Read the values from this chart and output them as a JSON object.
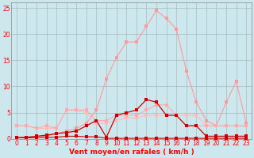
{
  "xlabel": "Vent moyen/en rafales ( km/h )",
  "bg_color": "#cce8ee",
  "grid_color": "#aabbbb",
  "xlim": [
    -0.5,
    23.5
  ],
  "ylim": [
    0,
    26
  ],
  "yticks": [
    0,
    5,
    10,
    15,
    20,
    25
  ],
  "xticks": [
    0,
    1,
    2,
    3,
    4,
    5,
    6,
    7,
    8,
    9,
    10,
    11,
    12,
    13,
    14,
    15,
    16,
    17,
    18,
    19,
    20,
    21,
    22,
    23
  ],
  "line_big_pink_x": [
    0,
    1,
    2,
    3,
    4,
    5,
    6,
    7,
    8,
    9,
    10,
    11,
    12,
    13,
    14,
    15,
    16,
    17,
    18,
    19,
    20,
    21,
    22,
    23
  ],
  "line_big_pink_y": [
    0.3,
    0.3,
    0.5,
    0.5,
    1.0,
    1.5,
    2.0,
    3.0,
    5.5,
    11.5,
    15.5,
    18.5,
    18.5,
    21.5,
    24.5,
    23.0,
    21.0,
    13.0,
    7.0,
    3.5,
    2.5,
    7.0,
    11.0,
    3.0
  ],
  "line_med_pink1_x": [
    0,
    1,
    2,
    3,
    4,
    5,
    6,
    7,
    8,
    9,
    10,
    11,
    12,
    13,
    14,
    15,
    16,
    17,
    18,
    19,
    20,
    21,
    22,
    23
  ],
  "line_med_pink1_y": [
    2.5,
    2.5,
    2.0,
    2.0,
    2.0,
    5.5,
    5.5,
    5.0,
    3.0,
    3.0,
    3.5,
    4.0,
    4.0,
    4.5,
    4.5,
    4.5,
    4.5,
    4.5,
    4.5,
    2.5,
    2.5,
    2.5,
    2.5,
    2.5
  ],
  "line_med_pink2_x": [
    0,
    1,
    2,
    3,
    4,
    5,
    6,
    7,
    8,
    9,
    10,
    11,
    12,
    13,
    14,
    15,
    16,
    17,
    18,
    19,
    20,
    21,
    22,
    23
  ],
  "line_med_pink2_y": [
    2.5,
    2.5,
    2.0,
    2.5,
    2.0,
    5.5,
    5.5,
    5.5,
    3.5,
    3.5,
    4.5,
    4.5,
    4.5,
    5.5,
    6.5,
    6.5,
    4.5,
    2.5,
    2.5,
    2.5,
    2.5,
    2.5,
    2.5,
    2.5
  ],
  "line_dark_red_x": [
    0,
    1,
    2,
    3,
    4,
    5,
    6,
    7,
    8,
    9,
    10,
    11,
    12,
    13,
    14,
    15,
    16,
    17,
    18,
    19,
    20,
    21,
    22,
    23
  ],
  "line_dark_red_y": [
    0.2,
    0.3,
    0.5,
    0.7,
    1.0,
    1.2,
    1.5,
    2.5,
    3.5,
    0.3,
    4.5,
    5.0,
    5.5,
    7.5,
    7.0,
    4.5,
    4.5,
    2.5,
    2.5,
    0.5,
    0.5,
    0.5,
    0.5,
    0.5
  ],
  "line_near_zero_x": [
    0,
    1,
    2,
    3,
    4,
    5,
    6,
    7,
    8,
    9,
    10,
    11,
    12,
    13,
    14,
    15,
    16,
    17,
    18,
    19,
    20,
    21,
    22,
    23
  ],
  "line_near_zero_y": [
    0.2,
    0.2,
    0.2,
    0.3,
    0.3,
    0.5,
    0.5,
    0.4,
    0.4,
    0.1,
    0.1,
    0.1,
    0.1,
    0.1,
    0.1,
    0.1,
    0.1,
    0.1,
    0.1,
    0.1,
    0.1,
    0.1,
    0.1,
    0.1
  ],
  "color_big_pink": "#ff9999",
  "color_med_pink1": "#ffbbbb",
  "color_med_pink2": "#ffaaaa",
  "color_dark_red": "#cc0000",
  "color_near_zero": "#cc0000"
}
